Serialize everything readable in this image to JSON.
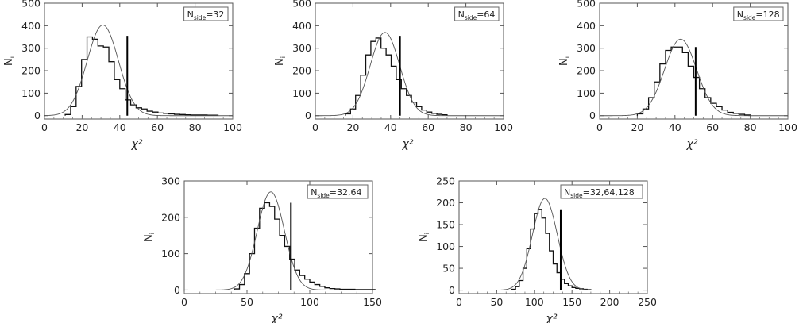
{
  "chart_data": [
    {
      "type": "histogram",
      "legend": {
        "main": "N",
        "sub": "side",
        "value": "=32"
      },
      "xlabel": "χ²",
      "ylabel": "N",
      "ylabel_sub": "i",
      "xlim": [
        0,
        100
      ],
      "ylim": [
        -15,
        500
      ],
      "xticks": [
        0,
        20,
        40,
        60,
        80,
        100
      ],
      "yticks": [
        0,
        100,
        200,
        300,
        400,
        500
      ],
      "bin_width": 2.9,
      "bin_start": 11,
      "counts": [
        5,
        40,
        130,
        250,
        350,
        340,
        310,
        305,
        240,
        160,
        120,
        70,
        48,
        35,
        30,
        20,
        16,
        12,
        10,
        8,
        6,
        5,
        4,
        3,
        3,
        3,
        2,
        2
      ],
      "fit": {
        "mean": 31,
        "sigma": 8.3,
        "peak": 403
      },
      "marker": {
        "x": 44,
        "top": 355
      }
    },
    {
      "type": "histogram",
      "legend": {
        "main": "N",
        "sub": "side",
        "value": "=64"
      },
      "xlabel": "χ²",
      "ylabel": "N",
      "ylabel_sub": "i",
      "xlim": [
        0,
        100
      ],
      "ylim": [
        -15,
        500
      ],
      "xticks": [
        0,
        20,
        40,
        60,
        80,
        100
      ],
      "yticks": [
        0,
        100,
        200,
        300,
        400,
        500
      ],
      "bin_width": 2.7,
      "bin_start": 16,
      "counts": [
        8,
        30,
        90,
        180,
        270,
        330,
        345,
        300,
        270,
        220,
        160,
        120,
        90,
        60,
        40,
        25,
        16,
        10,
        6,
        4
      ],
      "fit": {
        "mean": 37,
        "sigma": 7.8,
        "peak": 370
      },
      "marker": {
        "x": 45,
        "top": 355
      }
    },
    {
      "type": "histogram",
      "legend": {
        "main": "N",
        "sub": "side",
        "value": "=128"
      },
      "xlabel": "χ²",
      "ylabel": "N",
      "ylabel_sub": "i",
      "xlim": [
        0,
        100
      ],
      "ylim": [
        -15,
        500
      ],
      "xticks": [
        0,
        20,
        40,
        60,
        80,
        100
      ],
      "yticks": [
        0,
        100,
        200,
        300,
        400,
        500
      ],
      "bin_width": 3,
      "bin_start": 20,
      "counts": [
        8,
        30,
        80,
        150,
        230,
        290,
        305,
        305,
        280,
        220,
        170,
        120,
        80,
        55,
        40,
        25,
        15,
        10,
        6,
        3
      ],
      "fit": {
        "mean": 43,
        "sigma": 8.5,
        "peak": 340
      },
      "marker": {
        "x": 51,
        "top": 305
      }
    },
    {
      "type": "histogram",
      "legend": {
        "main": "N",
        "sub": "side",
        "value": "=32,64"
      },
      "xlabel": "χ²",
      "ylabel": "N",
      "ylabel_sub": "i",
      "xlim": [
        0,
        150
      ],
      "ylim": [
        -10,
        300
      ],
      "xticks": [
        0,
        50,
        100,
        150
      ],
      "yticks": [
        0,
        100,
        200,
        300
      ],
      "bin_width": 4,
      "bin_start": 40,
      "counts": [
        3,
        15,
        45,
        100,
        170,
        225,
        240,
        230,
        195,
        150,
        120,
        85,
        55,
        40,
        30,
        22,
        15,
        10,
        6,
        4,
        3,
        2,
        2,
        2,
        1,
        1,
        1,
        1
      ],
      "fit": {
        "mean": 69,
        "sigma": 10.8,
        "peak": 270
      },
      "marker": {
        "x": 85,
        "top": 240
      }
    },
    {
      "type": "histogram",
      "legend": {
        "main": "N",
        "sub": "side",
        "value": "=32,64,128"
      },
      "xlabel": "χ²",
      "ylabel": "N",
      "ylabel_sub": "i",
      "xlim": [
        0,
        250
      ],
      "ylim": [
        -8,
        250
      ],
      "xticks": [
        0,
        50,
        100,
        150,
        200,
        250
      ],
      "yticks": [
        0,
        50,
        100,
        150,
        200,
        250
      ],
      "bin_width": 5,
      "bin_start": 70,
      "counts": [
        2,
        8,
        22,
        50,
        95,
        140,
        175,
        185,
        165,
        130,
        90,
        60,
        40,
        25,
        15,
        10,
        6,
        4,
        3,
        2,
        1
      ],
      "fit": {
        "mean": 114,
        "sigma": 16.5,
        "peak": 210
      },
      "marker": {
        "x": 135,
        "top": 185
      }
    }
  ]
}
